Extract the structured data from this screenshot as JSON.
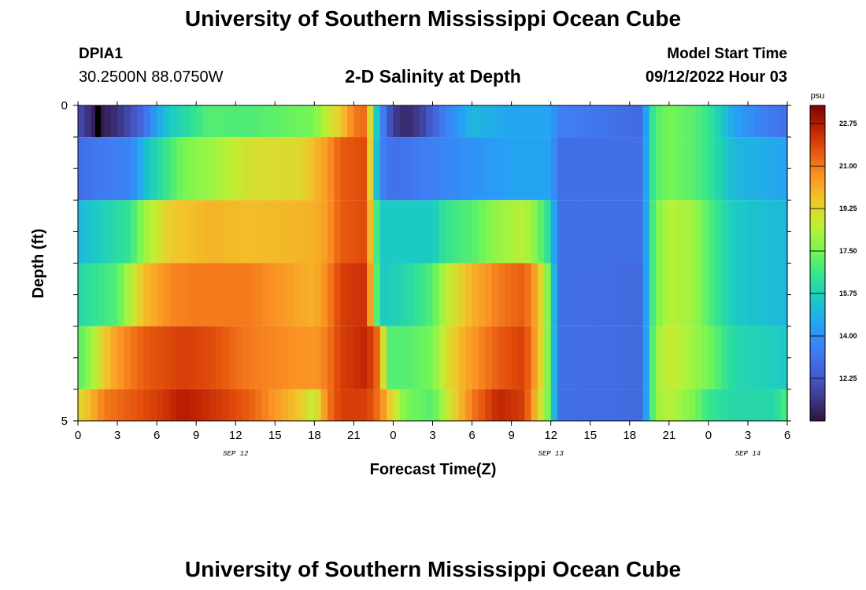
{
  "header": {
    "title": "University of Southern Mississippi Ocean Cube",
    "station": "DPIA1",
    "coords": "30.2500N  88.0750W",
    "subtitle": "2-D Salinity at Depth",
    "model_start_label": "Model Start Time",
    "model_start_value": "09/12/2022 Hour 03"
  },
  "footer": {
    "title": "University of Southern Mississippi Ocean Cube"
  },
  "chart_data": {
    "type": "heatmap",
    "title": "2-D Salinity at Depth",
    "xlabel": "Forecast Time(Z)",
    "ylabel": "Depth (ft)",
    "units": "psu",
    "x_hours_range": [
      0,
      54
    ],
    "x_tick_labels": [
      "0",
      "3",
      "6",
      "9",
      "12",
      "15",
      "18",
      "21",
      "0",
      "3",
      "6",
      "9",
      "12",
      "15",
      "18",
      "21",
      "0",
      "3",
      "6"
    ],
    "date_labels": [
      {
        "text": "SEP 12",
        "hour": 12
      },
      {
        "text": "SEP 13",
        "hour": 36
      },
      {
        "text": "SEP 14",
        "hour": 51
      }
    ],
    "y_range": [
      0,
      5
    ],
    "y_tick_labels": [
      "0",
      "5"
    ],
    "colorbar": {
      "min": 10.5,
      "max": 23.5,
      "ticks": [
        "22.75",
        "21.00",
        "19.25",
        "17.50",
        "15.75",
        "14.00",
        "12.25"
      ],
      "tick_values": [
        22.75,
        21.0,
        19.25,
        17.5,
        15.75,
        14.0,
        12.25
      ]
    },
    "layers": [
      {
        "depth_range": [
          0,
          0.5
        ],
        "keyframes": [
          [
            0,
            12.0
          ],
          [
            1.5,
            10.6
          ],
          [
            3,
            11.2
          ],
          [
            5,
            12.8
          ],
          [
            6,
            14.5
          ],
          [
            7,
            15.5
          ],
          [
            10,
            17.0
          ],
          [
            13,
            16.9
          ],
          [
            18,
            17.5
          ],
          [
            19,
            18.8
          ],
          [
            20,
            19.5
          ],
          [
            21,
            21.0
          ],
          [
            22,
            21.3
          ],
          [
            22.5,
            17.0
          ],
          [
            23,
            14.0
          ],
          [
            24,
            11.5
          ],
          [
            25,
            11.0
          ],
          [
            26,
            11.5
          ],
          [
            27,
            12.5
          ],
          [
            28,
            13.5
          ],
          [
            30,
            15.0
          ],
          [
            33,
            14.5
          ],
          [
            36,
            14.5
          ],
          [
            36.5,
            13.5
          ],
          [
            43,
            12.8
          ],
          [
            43.5,
            16.0
          ],
          [
            44,
            17.0
          ],
          [
            45,
            17.5
          ],
          [
            47,
            17.0
          ],
          [
            48,
            16.5
          ],
          [
            50,
            14.5
          ],
          [
            52,
            13.5
          ],
          [
            54,
            13.0
          ]
        ]
      },
      {
        "depth_range": [
          0.5,
          1.5
        ],
        "keyframes": [
          [
            0,
            13.0
          ],
          [
            4,
            13.6
          ],
          [
            5,
            15.0
          ],
          [
            6,
            16.0
          ],
          [
            8,
            17.5
          ],
          [
            10,
            18.0
          ],
          [
            13,
            19.0
          ],
          [
            17,
            19.2
          ],
          [
            19,
            20.5
          ],
          [
            20,
            21.5
          ],
          [
            22,
            21.8
          ],
          [
            22.5,
            17.0
          ],
          [
            23,
            13.5
          ],
          [
            24,
            13.0
          ],
          [
            30,
            14.0
          ],
          [
            33,
            14.5
          ],
          [
            36,
            14.5
          ],
          [
            36.5,
            13.0
          ],
          [
            43,
            13.0
          ],
          [
            43.5,
            16.0
          ],
          [
            44,
            17.0
          ],
          [
            45,
            17.5
          ],
          [
            47,
            17.0
          ],
          [
            48,
            16.5
          ],
          [
            50,
            15.0
          ],
          [
            54,
            14.5
          ]
        ]
      },
      {
        "depth_range": [
          1.5,
          2.5
        ],
        "keyframes": [
          [
            0,
            15.0
          ],
          [
            4,
            16.5
          ],
          [
            5,
            18.0
          ],
          [
            7,
            19.5
          ],
          [
            10,
            20.0
          ],
          [
            13,
            19.8
          ],
          [
            18,
            20.0
          ],
          [
            19,
            20.5
          ],
          [
            20,
            21.5
          ],
          [
            22,
            21.8
          ],
          [
            22.5,
            18.0
          ],
          [
            23,
            15.5
          ],
          [
            27,
            15.5
          ],
          [
            28,
            16.5
          ],
          [
            30,
            17.0
          ],
          [
            32,
            18.0
          ],
          [
            34,
            18.5
          ],
          [
            35,
            17.5
          ],
          [
            36,
            16.0
          ],
          [
            36.5,
            13.0
          ],
          [
            43,
            13.0
          ],
          [
            43.5,
            16.0
          ],
          [
            44,
            17.5
          ],
          [
            45,
            18.5
          ],
          [
            47,
            18.0
          ],
          [
            48,
            17.0
          ],
          [
            50,
            15.5
          ],
          [
            54,
            15.0
          ]
        ]
      },
      {
        "depth_range": [
          2.5,
          3.5
        ],
        "keyframes": [
          [
            0,
            16.0
          ],
          [
            3,
            17.0
          ],
          [
            4,
            18.5
          ],
          [
            5,
            19.8
          ],
          [
            7,
            20.8
          ],
          [
            9,
            21.0
          ],
          [
            13,
            21.0
          ],
          [
            18,
            20.0
          ],
          [
            19,
            20.8
          ],
          [
            20,
            22.0
          ],
          [
            22,
            22.3
          ],
          [
            22.5,
            18.5
          ],
          [
            23,
            15.5
          ],
          [
            25,
            16.0
          ],
          [
            27,
            17.0
          ],
          [
            28,
            18.5
          ],
          [
            30,
            20.0
          ],
          [
            32,
            21.0
          ],
          [
            34,
            21.5
          ],
          [
            35,
            20.0
          ],
          [
            36,
            17.0
          ],
          [
            36.5,
            13.0
          ],
          [
            43,
            12.8
          ],
          [
            43.5,
            16.0
          ],
          [
            44,
            17.5
          ],
          [
            45,
            18.5
          ],
          [
            47,
            18.0
          ],
          [
            48,
            17.0
          ],
          [
            50,
            15.5
          ],
          [
            54,
            15.0
          ]
        ]
      },
      {
        "depth_range": [
          3.5,
          4.5
        ],
        "keyframes": [
          [
            0,
            17.0
          ],
          [
            1,
            18.0
          ],
          [
            2,
            19.5
          ],
          [
            3,
            20.5
          ],
          [
            5,
            21.5
          ],
          [
            8,
            22.0
          ],
          [
            10,
            21.8
          ],
          [
            13,
            21.0
          ],
          [
            18,
            20.5
          ],
          [
            19,
            21.0
          ],
          [
            20,
            22.0
          ],
          [
            22,
            22.5
          ],
          [
            23,
            21.0
          ],
          [
            23.5,
            17.0
          ],
          [
            25,
            17.0
          ],
          [
            27,
            17.5
          ],
          [
            28,
            19.0
          ],
          [
            30,
            20.5
          ],
          [
            32,
            21.5
          ],
          [
            34,
            22.0
          ],
          [
            35,
            20.0
          ],
          [
            36,
            17.0
          ],
          [
            36.5,
            13.0
          ],
          [
            43,
            12.8
          ],
          [
            43.5,
            16.0
          ],
          [
            44,
            18.0
          ],
          [
            45,
            18.8
          ],
          [
            47,
            18.0
          ],
          [
            48,
            17.5
          ],
          [
            50,
            16.0
          ],
          [
            54,
            15.5
          ]
        ]
      },
      {
        "depth_range": [
          4.5,
          5.0
        ],
        "keyframes": [
          [
            0,
            19.0
          ],
          [
            1,
            20.0
          ],
          [
            2,
            21.0
          ],
          [
            4,
            21.5
          ],
          [
            6,
            22.0
          ],
          [
            8,
            22.7
          ],
          [
            10,
            22.3
          ],
          [
            13,
            21.5
          ],
          [
            15,
            20.5
          ],
          [
            17,
            19.5
          ],
          [
            18,
            18.5
          ],
          [
            19,
            21.0
          ],
          [
            20,
            22.0
          ],
          [
            22,
            22.0
          ],
          [
            23,
            21.0
          ],
          [
            24,
            19.0
          ],
          [
            25,
            17.5
          ],
          [
            27,
            17.0
          ],
          [
            28,
            18.5
          ],
          [
            30,
            21.0
          ],
          [
            32,
            22.5
          ],
          [
            34,
            22.0
          ],
          [
            35,
            19.5
          ],
          [
            36,
            17.0
          ],
          [
            36.5,
            13.0
          ],
          [
            43,
            12.8
          ],
          [
            43.5,
            16.0
          ],
          [
            44,
            18.0
          ],
          [
            45,
            18.5
          ],
          [
            47,
            17.5
          ],
          [
            48,
            16.5
          ],
          [
            50,
            16.0
          ],
          [
            53,
            16.0
          ],
          [
            54,
            17.0
          ]
        ]
      }
    ],
    "markers": [
      {
        "hour": 1.5,
        "depth_range": [
          0,
          0.5
        ],
        "color": "#000000"
      }
    ]
  }
}
